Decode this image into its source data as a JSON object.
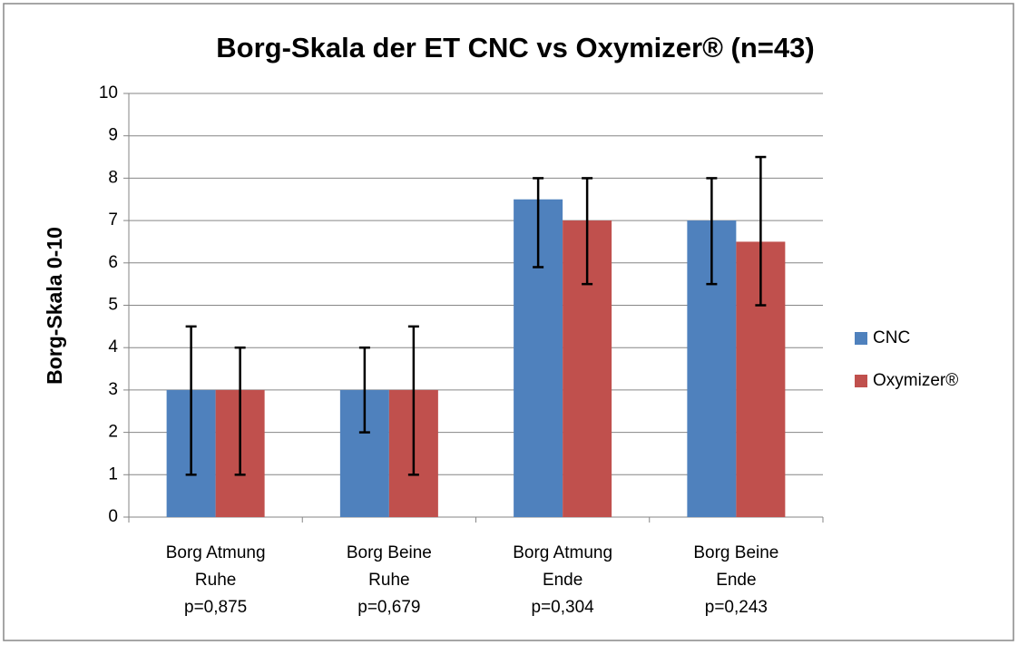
{
  "chart_data": {
    "type": "bar",
    "title": "Borg-Skala der ET CNC vs Oxymizer® (n=43)",
    "y_label": "Borg-Skala 0-10",
    "categories": [
      [
        "Borg Atmung",
        "Ruhe",
        "p=0,875"
      ],
      [
        "Borg Beine",
        "Ruhe",
        "p=0,679"
      ],
      [
        "Borg Atmung",
        "Ende",
        "p=0,304"
      ],
      [
        "Borg Beine",
        "Ende",
        "p=0,243"
      ]
    ],
    "series": [
      {
        "name": "CNC",
        "color": "#4f81bd",
        "values": [
          3,
          3,
          7.5,
          7
        ],
        "lower": [
          1,
          2,
          5.9,
          5.5
        ],
        "upper": [
          4.5,
          4,
          8,
          8
        ]
      },
      {
        "name": "Oxymizer®",
        "color": "#c0504d",
        "values": [
          3,
          3,
          7,
          6.5
        ],
        "lower": [
          1,
          1,
          5.5,
          5
        ],
        "upper": [
          4,
          4.5,
          8,
          8.5
        ]
      }
    ],
    "ylim": [
      0,
      10
    ],
    "yticks": [
      0,
      1,
      2,
      3,
      4,
      5,
      6,
      7,
      8,
      9,
      10
    ],
    "grid": true,
    "legend": "right"
  }
}
